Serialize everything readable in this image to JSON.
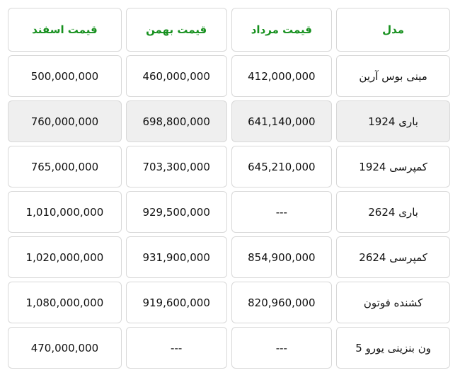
{
  "headers": {
    "model": "مدل",
    "mordad": "قیمت مرداد",
    "bahman": "قیمت بهمن",
    "esfand": "قیمت اسفند"
  },
  "rows": [
    {
      "model": "مینی بوس آرین",
      "mordad": "412,000,000",
      "bahman": "460,000,000",
      "esfand": "500,000,000"
    },
    {
      "model": "باری 1924",
      "mordad": "641,140,000",
      "bahman": "698,800,000",
      "esfand": "760,000,000"
    },
    {
      "model": "کمپرسی 1924",
      "mordad": "645,210,000",
      "bahman": "703,300,000",
      "esfand": "765,000,000"
    },
    {
      "model": "باری 2624",
      "mordad": "---",
      "bahman": "929,500,000",
      "esfand": "1,010,000,000"
    },
    {
      "model": "کمپرسی 2624",
      "mordad": "854,900,000",
      "bahman": "931,900,000",
      "esfand": "1,020,000,000"
    },
    {
      "model": "کشنده فوتون",
      "mordad": "820,960,000",
      "bahman": "919,600,000",
      "esfand": "1,080,000,000"
    },
    {
      "model": "ون بنزینی یورو 5",
      "mordad": "---",
      "bahman": "---",
      "esfand": "470,000,000"
    }
  ],
  "colors": {
    "header_text": "#16901e",
    "highlight_row": "#efefef",
    "border": "#d8d8d8"
  }
}
